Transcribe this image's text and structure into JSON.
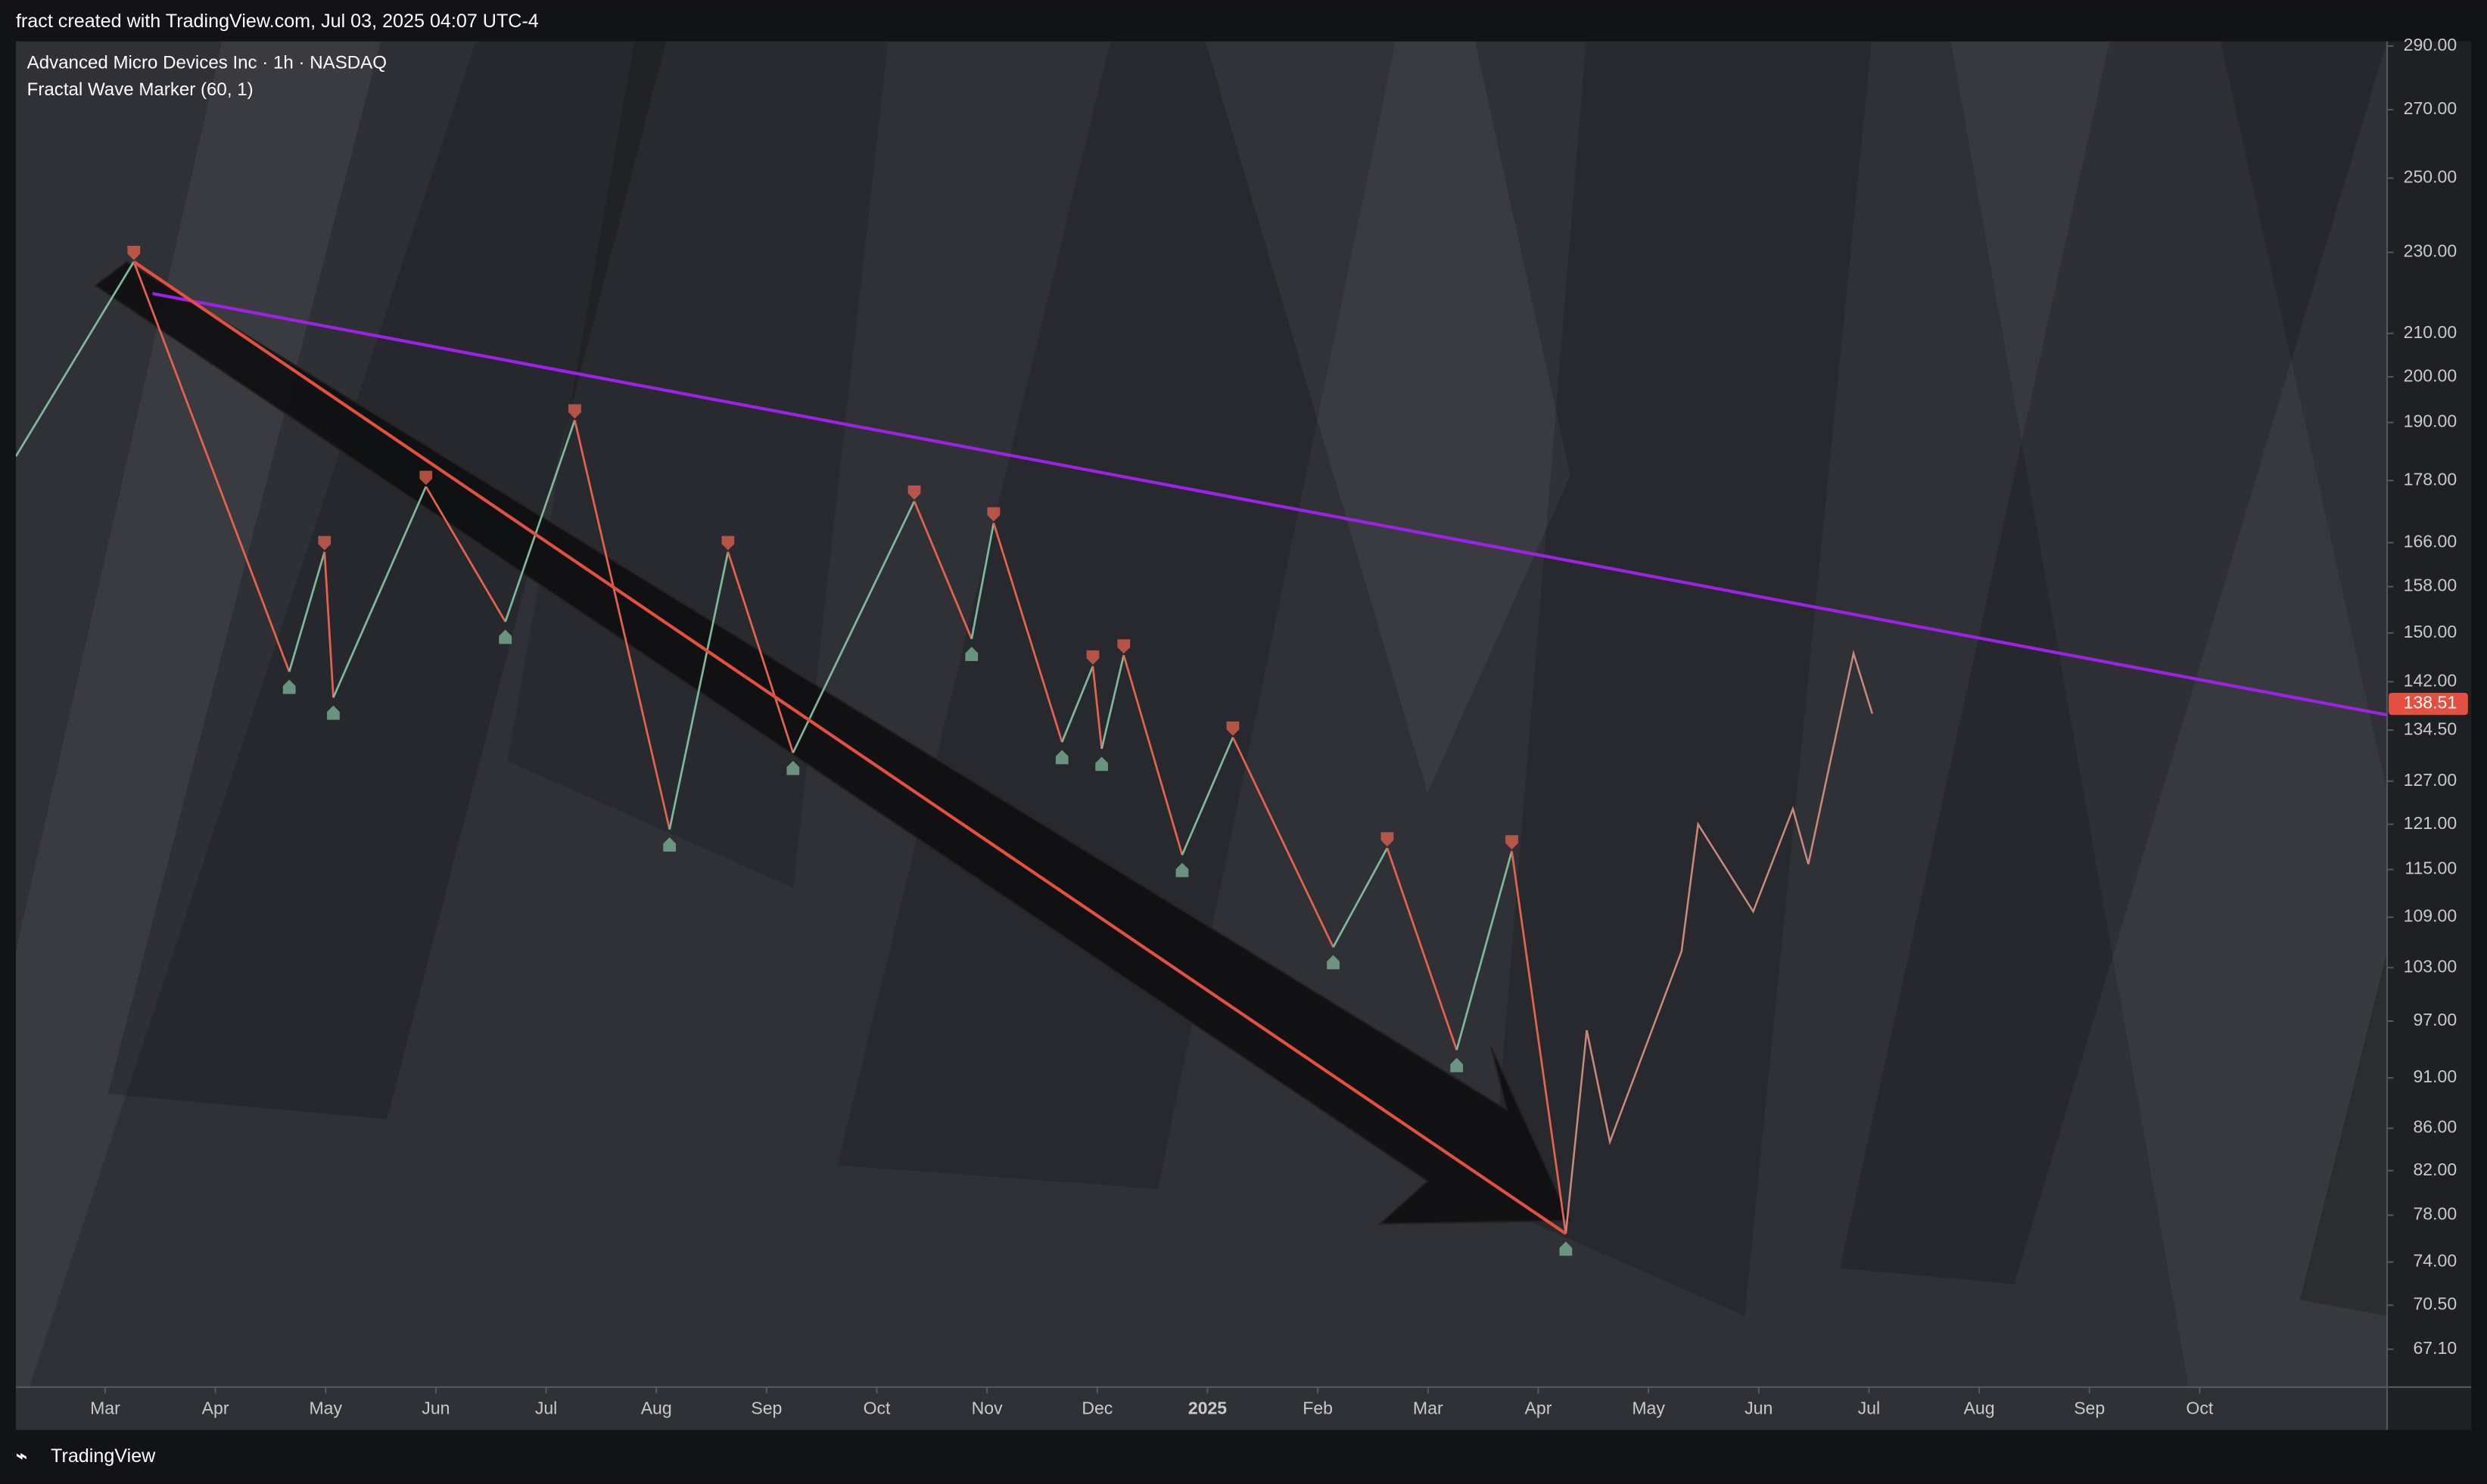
{
  "header": {
    "text": "fract created with TradingView.com, Jul 03, 2025 04:07 UTC-4"
  },
  "footer": {
    "brand": "TradingView"
  },
  "chart_data": {
    "type": "line",
    "title": "Advanced Micro Devices Inc · 1h · NASDAQ",
    "subtitle": "Fractal Wave Marker (60, 1)",
    "log_scale": true,
    "xlim": [
      1.19,
      22.7
    ],
    "xticks": [
      {
        "value": 2,
        "label": "Mar"
      },
      {
        "value": 3,
        "label": "Apr"
      },
      {
        "value": 4,
        "label": "May"
      },
      {
        "value": 5,
        "label": "Jun"
      },
      {
        "value": 6,
        "label": "Jul"
      },
      {
        "value": 7,
        "label": "Aug"
      },
      {
        "value": 8,
        "label": "Sep"
      },
      {
        "value": 9,
        "label": "Oct"
      },
      {
        "value": 10,
        "label": "Nov"
      },
      {
        "value": 11,
        "label": "Dec"
      },
      {
        "value": 12,
        "label": "2025"
      },
      {
        "value": 13,
        "label": "Feb"
      },
      {
        "value": 14,
        "label": "Mar"
      },
      {
        "value": 15,
        "label": "Apr"
      },
      {
        "value": 16,
        "label": "May"
      },
      {
        "value": 17,
        "label": "Jun"
      },
      {
        "value": 18,
        "label": "Jul"
      },
      {
        "value": 19,
        "label": "Aug"
      },
      {
        "value": 20,
        "label": "Sep"
      },
      {
        "value": 21,
        "label": "Oct"
      }
    ],
    "ylim": [
      64.3,
      291.5
    ],
    "yticks": [
      {
        "value": 290,
        "label": "290.00"
      },
      {
        "value": 270,
        "label": "270.00"
      },
      {
        "value": 250,
        "label": "250.00"
      },
      {
        "value": 230,
        "label": "230.00"
      },
      {
        "value": 210,
        "label": "210.00"
      },
      {
        "value": 200,
        "label": "200.00"
      },
      {
        "value": 190,
        "label": "190.00"
      },
      {
        "value": 178,
        "label": "178.00"
      },
      {
        "value": 166,
        "label": "166.00"
      },
      {
        "value": 158,
        "label": "158.00"
      },
      {
        "value": 150,
        "label": "150.00"
      },
      {
        "value": 142,
        "label": "142.00"
      },
      {
        "value": 134.5,
        "label": "134.50"
      },
      {
        "value": 127,
        "label": "127.00"
      },
      {
        "value": 121,
        "label": "121.00"
      },
      {
        "value": 115,
        "label": "115.00"
      },
      {
        "value": 109,
        "label": "109.00"
      },
      {
        "value": 103,
        "label": "103.00"
      },
      {
        "value": 97,
        "label": "97.00"
      },
      {
        "value": 91,
        "label": "91.00"
      },
      {
        "value": 86,
        "label": "86.00"
      },
      {
        "value": 82,
        "label": "82.00"
      },
      {
        "value": 78,
        "label": "78.00"
      },
      {
        "value": 74,
        "label": "74.00"
      },
      {
        "value": 70.5,
        "label": "70.50"
      },
      {
        "value": 67.1,
        "label": "67.10"
      }
    ],
    "last_price": 138.51,
    "last_price_color": "#e4503f",
    "series": [
      {
        "kind": "zigzag",
        "up_color": "#7fb79a",
        "down_color": "#e4634f",
        "x": [
          1.19,
          2.26,
          3.67,
          3.99,
          4.07,
          4.91,
          5.63,
          6.26,
          7.12,
          7.65,
          8.24,
          9.34,
          9.86,
          10.06,
          10.68,
          10.96,
          11.04,
          11.24,
          11.77,
          12.23,
          13.14,
          13.63,
          14.26,
          14.76,
          15.25
        ],
        "values": [
          182.9,
          227.6,
          143.6,
          164.3,
          139.5,
          176.8,
          151.9,
          190.5,
          120.3,
          164.3,
          131.1,
          173.9,
          149.0,
          169.7,
          132.7,
          144.5,
          131.7,
          146.3,
          116.9,
          133.4,
          105.4,
          117.8,
          93.9,
          117.4,
          76.4
        ]
      },
      {
        "kind": "price",
        "color": "#c98a7c",
        "x": [
          15.25,
          15.44,
          15.65,
          16.3,
          16.45,
          16.95,
          17.31,
          17.45,
          17.86,
          18.03
        ],
        "values": [
          76.4,
          96.0,
          84.7,
          104.9,
          121.0,
          109.7,
          123.1,
          115.7,
          146.6,
          137.0
        ]
      },
      {
        "kind": "trend",
        "color": "#9b22e6",
        "x": [
          2.43,
          22.7
        ],
        "values": [
          219.6,
          136.8
        ]
      },
      {
        "kind": "trend",
        "color": "#e4503f",
        "x": [
          2.26,
          15.25
        ],
        "values": [
          227.6,
          76.4
        ]
      }
    ]
  }
}
